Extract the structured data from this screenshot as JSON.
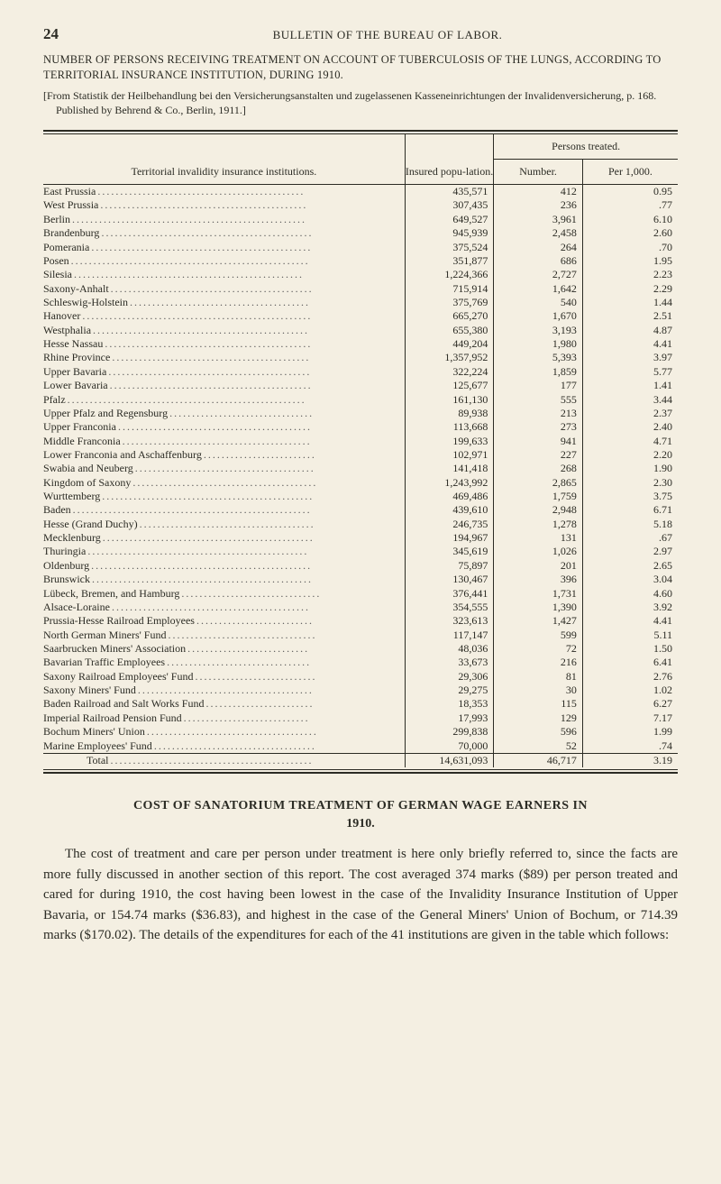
{
  "page_number": "24",
  "running_title": "BULLETIN OF THE BUREAU OF LABOR.",
  "section_title": "NUMBER OF PERSONS RECEIVING TREATMENT ON ACCOUNT OF TUBERCULOSIS OF THE LUNGS, ACCORDING TO TERRITORIAL INSURANCE INSTITUTION, DURING 1910.",
  "source_note": "[From Statistik der Heilbehandlung bei den Versicherungsanstalten und zugelassenen Kasseneinrichtungen der Invalidenversicherung, p. 168. Published by Behrend & Co., Berlin, 1911.]",
  "table": {
    "headers": {
      "institutions": "Territorial invalidity insurance institutions.",
      "insured": "Insured popu-lation.",
      "persons_treated": "Persons treated.",
      "number": "Number.",
      "per_1000": "Per 1,000."
    },
    "rows": [
      {
        "inst": "East Prussia",
        "pop": "435,571",
        "num": "412",
        "per": "0.95"
      },
      {
        "inst": "West Prussia",
        "pop": "307,435",
        "num": "236",
        "per": ".77"
      },
      {
        "inst": "Berlin",
        "pop": "649,527",
        "num": "3,961",
        "per": "6.10"
      },
      {
        "inst": "Brandenburg",
        "pop": "945,939",
        "num": "2,458",
        "per": "2.60"
      },
      {
        "inst": "Pomerania",
        "pop": "375,524",
        "num": "264",
        "per": ".70"
      },
      {
        "inst": "Posen",
        "pop": "351,877",
        "num": "686",
        "per": "1.95"
      },
      {
        "inst": "Silesia",
        "pop": "1,224,366",
        "num": "2,727",
        "per": "2.23"
      },
      {
        "inst": "Saxony-Anhalt",
        "pop": "715,914",
        "num": "1,642",
        "per": "2.29"
      },
      {
        "inst": "Schleswig-Holstein",
        "pop": "375,769",
        "num": "540",
        "per": "1.44"
      },
      {
        "inst": "Hanover",
        "pop": "665,270",
        "num": "1,670",
        "per": "2.51"
      },
      {
        "inst": "Westphalia",
        "pop": "655,380",
        "num": "3,193",
        "per": "4.87"
      },
      {
        "inst": "Hesse Nassau",
        "pop": "449,204",
        "num": "1,980",
        "per": "4.41"
      },
      {
        "inst": "Rhine Province",
        "pop": "1,357,952",
        "num": "5,393",
        "per": "3.97"
      },
      {
        "inst": "Upper Bavaria",
        "pop": "322,224",
        "num": "1,859",
        "per": "5.77"
      },
      {
        "inst": "Lower Bavaria",
        "pop": "125,677",
        "num": "177",
        "per": "1.41"
      },
      {
        "inst": "Pfalz",
        "pop": "161,130",
        "num": "555",
        "per": "3.44"
      },
      {
        "inst": "Upper Pfalz and Regensburg",
        "pop": "89,938",
        "num": "213",
        "per": "2.37"
      },
      {
        "inst": "Upper Franconia",
        "pop": "113,668",
        "num": "273",
        "per": "2.40"
      },
      {
        "inst": "Middle Franconia",
        "pop": "199,633",
        "num": "941",
        "per": "4.71"
      },
      {
        "inst": "Lower Franconia and Aschaffenburg",
        "pop": "102,971",
        "num": "227",
        "per": "2.20"
      },
      {
        "inst": "Swabia and Neuberg",
        "pop": "141,418",
        "num": "268",
        "per": "1.90"
      },
      {
        "inst": "Kingdom of Saxony",
        "pop": "1,243,992",
        "num": "2,865",
        "per": "2.30"
      },
      {
        "inst": "Wurttemberg",
        "pop": "469,486",
        "num": "1,759",
        "per": "3.75"
      },
      {
        "inst": "Baden",
        "pop": "439,610",
        "num": "2,948",
        "per": "6.71"
      },
      {
        "inst": "Hesse (Grand Duchy)",
        "pop": "246,735",
        "num": "1,278",
        "per": "5.18"
      },
      {
        "inst": "Mecklenburg",
        "pop": "194,967",
        "num": "131",
        "per": ".67"
      },
      {
        "inst": "Thuringia",
        "pop": "345,619",
        "num": "1,026",
        "per": "2.97"
      },
      {
        "inst": "Oldenburg",
        "pop": "75,897",
        "num": "201",
        "per": "2.65"
      },
      {
        "inst": "Brunswick",
        "pop": "130,467",
        "num": "396",
        "per": "3.04"
      },
      {
        "inst": "Lübeck, Bremen, and Hamburg",
        "pop": "376,441",
        "num": "1,731",
        "per": "4.60"
      },
      {
        "inst": "Alsace-Loraine",
        "pop": "354,555",
        "num": "1,390",
        "per": "3.92"
      },
      {
        "inst": "Prussia-Hesse Railroad Employees",
        "pop": "323,613",
        "num": "1,427",
        "per": "4.41"
      },
      {
        "inst": "North German Miners' Fund",
        "pop": "117,147",
        "num": "599",
        "per": "5.11"
      },
      {
        "inst": "Saarbrucken Miners' Association",
        "pop": "48,036",
        "num": "72",
        "per": "1.50"
      },
      {
        "inst": "Bavarian Traffic Employees",
        "pop": "33,673",
        "num": "216",
        "per": "6.41"
      },
      {
        "inst": "Saxony Railroad Employees' Fund",
        "pop": "29,306",
        "num": "81",
        "per": "2.76"
      },
      {
        "inst": "Saxony Miners' Fund",
        "pop": "29,275",
        "num": "30",
        "per": "1.02"
      },
      {
        "inst": "Baden Railroad and Salt Works Fund",
        "pop": "18,353",
        "num": "115",
        "per": "6.27"
      },
      {
        "inst": "Imperial Railroad Pension Fund",
        "pop": "17,993",
        "num": "129",
        "per": "7.17"
      },
      {
        "inst": "Bochum Miners' Union",
        "pop": "299,838",
        "num": "596",
        "per": "1.99"
      },
      {
        "inst": "Marine Employees' Fund",
        "pop": "70,000",
        "num": "52",
        "per": ".74"
      }
    ],
    "total": {
      "inst": "Total",
      "pop": "14,631,093",
      "num": "46,717",
      "per": "3.19"
    }
  },
  "cost_heading": "COST OF SANATORIUM TREATMENT OF GERMAN WAGE EARNERS IN",
  "cost_year": "1910.",
  "body_text": "The cost of treatment and care per person under treatment is here only briefly referred to, since the facts are more fully discussed in another section of this report. The cost averaged 374 marks ($89) per person treated and cared for during 1910, the cost having been lowest in the case of the Invalidity Insurance Institution of Upper Bavaria, or 154.74 marks ($36.83), and highest in the case of the General Miners' Union of Bochum, or 714.39 marks ($170.02). The details of the expenditures for each of the 41 institutions are given in the table which follows:"
}
